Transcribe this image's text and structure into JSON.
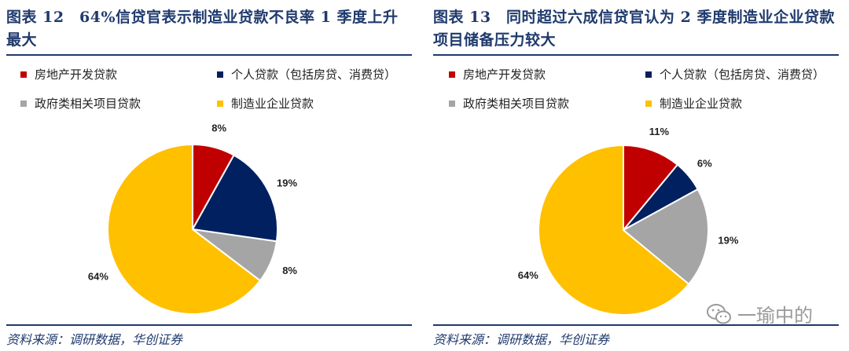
{
  "panels": [
    {
      "title": "图表 12　64%信贷官表示制造业贷款不良率 1 季度上升最大",
      "source": "资料来源：调研数据，华创证券",
      "legend": [
        {
          "label": "房地产开发贷款",
          "color": "#c00000"
        },
        {
          "label": "个人贷款（包括房贷、消费贷）",
          "color": "#002060"
        },
        {
          "label": "政府类相关项目贷款",
          "color": "#a5a5a5"
        },
        {
          "label": "制造业企业贷款",
          "color": "#ffc000"
        }
      ]
    },
    {
      "title": "图表 13　同时超过六成信贷官认为 2 季度制造业企业贷款项目储备压力较大",
      "source": "资料来源：调研数据，华创证券",
      "legend": [
        {
          "label": "房地产开发贷款",
          "color": "#c00000"
        },
        {
          "label": "个人贷款（包括房贷、消费贷）",
          "color": "#002060"
        },
        {
          "label": "政府类相关项目贷款",
          "color": "#a5a5a5"
        },
        {
          "label": "制造业企业贷款",
          "color": "#ffc000"
        }
      ]
    }
  ],
  "chart_data": [
    {
      "type": "pie",
      "title": "64%信贷官表示制造业贷款不良率 1 季度上升最大",
      "categories": [
        "房地产开发贷款",
        "个人贷款（包括房贷、消费贷）",
        "政府类相关项目贷款",
        "制造业企业贷款"
      ],
      "values": [
        8,
        19,
        8,
        64
      ],
      "labels": [
        "8%",
        "19%",
        "8%",
        "64%"
      ],
      "colors": [
        "#c00000",
        "#002060",
        "#a5a5a5",
        "#ffc000"
      ],
      "legend_position": "top"
    },
    {
      "type": "pie",
      "title": "同时超过六成信贷官认为 2 季度制造业企业贷款项目储备压力较大",
      "categories": [
        "房地产开发贷款",
        "个人贷款（包括房贷、消费贷）",
        "政府类相关项目贷款",
        "制造业企业贷款"
      ],
      "values": [
        11,
        6,
        19,
        64
      ],
      "labels": [
        "11%",
        "6%",
        "19%",
        "64%"
      ],
      "colors": [
        "#c00000",
        "#002060",
        "#a5a5a5",
        "#ffc000"
      ],
      "legend_position": "top"
    }
  ],
  "watermark": {
    "text": "一瑜中的",
    "icon": "wechat-icon"
  }
}
